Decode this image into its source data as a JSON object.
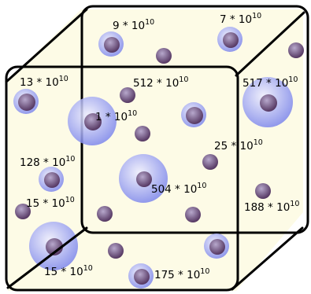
{
  "colors": {
    "background": "#fdfbe6",
    "edge": "#000000",
    "dark_start": "#b7a8cc",
    "dark_end": "#4e2f5a",
    "halo_start": "#eeeeff",
    "halo_end": "#7a84ec"
  },
  "labels": [
    {
      "id": "lbl-9",
      "base": "9 * 10",
      "exp": "10"
    },
    {
      "id": "lbl-7",
      "base": "7 * 10",
      "exp": "10"
    },
    {
      "id": "lbl-13",
      "base": "13 * 10",
      "exp": "10"
    },
    {
      "id": "lbl-512",
      "base": "512 * 10",
      "exp": "10"
    },
    {
      "id": "lbl-517",
      "base": "517 * 10",
      "exp": "10"
    },
    {
      "id": "lbl-1",
      "base": "1 * 10",
      "exp": "10"
    },
    {
      "id": "lbl-25",
      "base": "25 * 10",
      "exp": "10"
    },
    {
      "id": "lbl-128",
      "base": "128 * 10",
      "exp": "10"
    },
    {
      "id": "lbl-504",
      "base": "504 * 10",
      "exp": "10"
    },
    {
      "id": "lbl-15a",
      "base": "15 * 10",
      "exp": "10"
    },
    {
      "id": "lbl-188",
      "base": "188 * 10",
      "exp": "10"
    },
    {
      "id": "lbl-15b",
      "base": "15 * 10",
      "exp": "10"
    },
    {
      "id": "lbl-175",
      "base": "175 * 10",
      "exp": "10"
    }
  ]
}
